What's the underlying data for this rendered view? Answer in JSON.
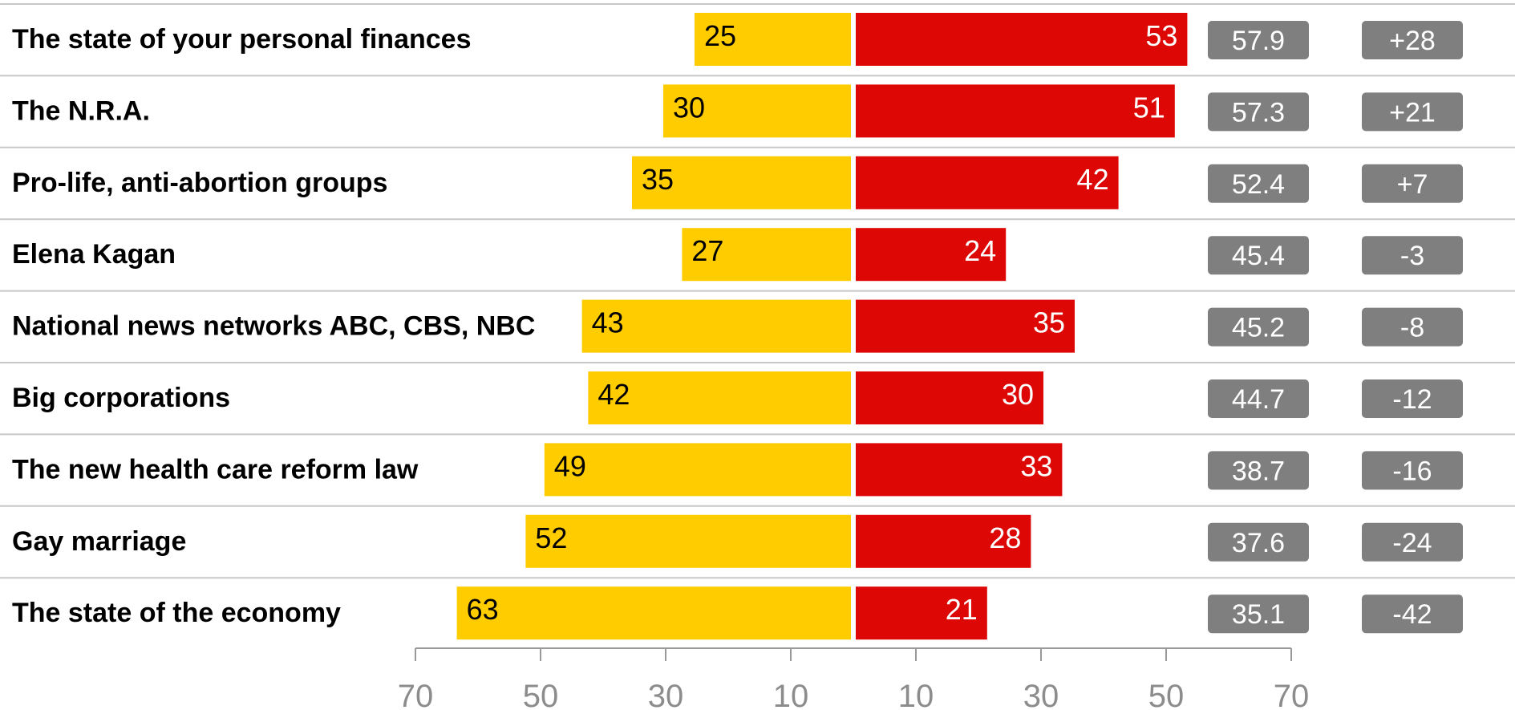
{
  "colors": {
    "left_bar": "#FFCC00",
    "right_bar": "#DD0806",
    "pill": "#7F7F7F",
    "separator": "#C8C8C8",
    "axis": "#9A9A9A",
    "axis_text": "#8C8C8C"
  },
  "chart_data": {
    "type": "bar",
    "orientation": "horizontal-diverging",
    "categories": [
      "The state of your personal finances",
      "The N.R.A.",
      "Pro-life, anti-abortion groups",
      "Elena Kagan",
      "National news networks ABC, CBS, NBC",
      "Big corporations",
      "The new health care reform law",
      "Gay marriage",
      "The state of the economy"
    ],
    "series": [
      {
        "values": [
          25,
          30,
          35,
          27,
          43,
          42,
          49,
          52,
          63
        ]
      },
      {
        "values": [
          53,
          51,
          42,
          24,
          35,
          30,
          33,
          28,
          21
        ]
      }
    ],
    "column_values": [
      [
        "57.9",
        "57.3",
        "52.4",
        "45.4",
        "45.2",
        "44.7",
        "38.7",
        "37.6",
        "35.1"
      ],
      [
        "+28",
        "+21",
        "+7",
        "-3",
        "-8",
        "-12",
        "-16",
        "-24",
        "-42"
      ]
    ],
    "axis_ticks": [
      "70",
      "50",
      "30",
      "10",
      "10",
      "30",
      "50",
      "70"
    ],
    "axis_range_each_side": [
      0,
      70
    ],
    "grid": false,
    "legend": "none"
  }
}
